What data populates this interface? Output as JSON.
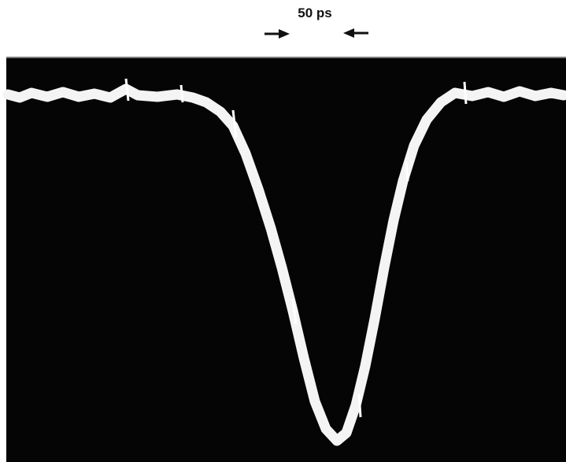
{
  "annotation": {
    "label": "50 ps"
  }
}
